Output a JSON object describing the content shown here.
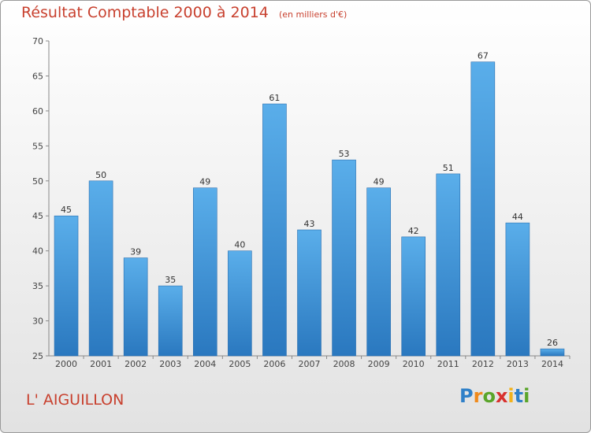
{
  "header": {
    "title": "Résultat Comptable 2000 à 2014",
    "subtitle": "(en milliers d'€)"
  },
  "location": "L' AIGUILLON",
  "logo": {
    "letters": [
      "P",
      "r",
      "o",
      "x",
      "i",
      "t",
      "i"
    ],
    "colors": [
      "#2f80c8",
      "#f08a1c",
      "#5aa52a",
      "#d8312e",
      "#f2b21c",
      "#2f80c8",
      "#5aa52a"
    ]
  },
  "colors": {
    "bar": "#4a9ee0",
    "bar_dark": "#2f7fc4",
    "title": "#c8402e"
  },
  "chart_data": {
    "type": "bar",
    "title": "Résultat Comptable 2000 à 2014",
    "subtitle": "(en milliers d'€)",
    "categories": [
      "2000",
      "2001",
      "2002",
      "2003",
      "2004",
      "2005",
      "2006",
      "2007",
      "2008",
      "2009",
      "2010",
      "2011",
      "2012",
      "2013",
      "2014"
    ],
    "values": [
      45,
      50,
      39,
      35,
      49,
      40,
      61,
      43,
      53,
      49,
      42,
      51,
      67,
      44,
      26
    ],
    "ylim": [
      25,
      70
    ],
    "yticks": [
      25,
      30,
      35,
      40,
      45,
      50,
      55,
      60,
      65,
      70
    ],
    "grid": false,
    "xlabel": "",
    "ylabel": ""
  }
}
